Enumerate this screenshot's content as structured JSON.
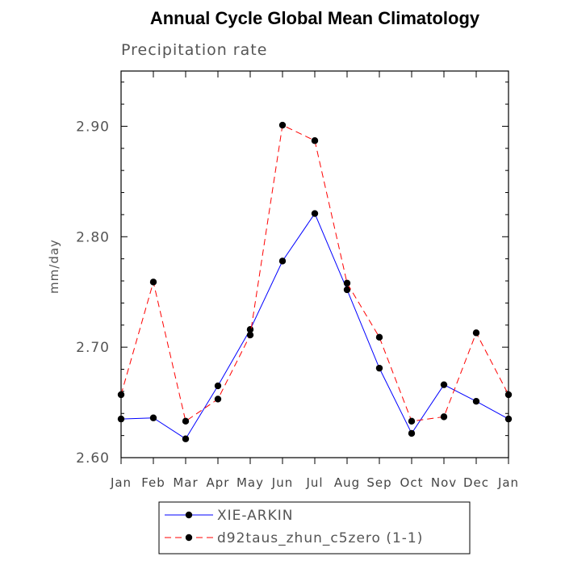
{
  "chart_data": {
    "type": "line",
    "title": "Annual Cycle Global Mean Climatology",
    "subtitle": "Precipitation rate",
    "xlabel": "",
    "ylabel": "mm/day",
    "categories": [
      "Jan",
      "Feb",
      "Mar",
      "Apr",
      "May",
      "Jun",
      "Jul",
      "Aug",
      "Sep",
      "Oct",
      "Nov",
      "Dec",
      "Jan"
    ],
    "ylim": [
      2.6,
      2.95
    ],
    "yticks": [
      2.6,
      2.7,
      2.8,
      2.9
    ],
    "ytick_labels": [
      "2.60",
      "2.70",
      "2.80",
      "2.90"
    ],
    "grid": false,
    "legend_position": "bottom",
    "series": [
      {
        "name": "XIE-ARKIN",
        "color": "#0000ff",
        "dash": "solid",
        "values": [
          2.635,
          2.636,
          2.617,
          2.665,
          2.716,
          2.778,
          2.821,
          2.752,
          2.681,
          2.622,
          2.666,
          2.651,
          2.635
        ]
      },
      {
        "name": "d92taus_zhun_c5zero (1-1)",
        "color": "#ff0000",
        "dash": "dashed",
        "values": [
          2.657,
          2.759,
          2.633,
          2.653,
          2.711,
          2.901,
          2.887,
          2.758,
          2.709,
          2.633,
          2.637,
          2.713,
          2.657
        ]
      }
    ]
  }
}
